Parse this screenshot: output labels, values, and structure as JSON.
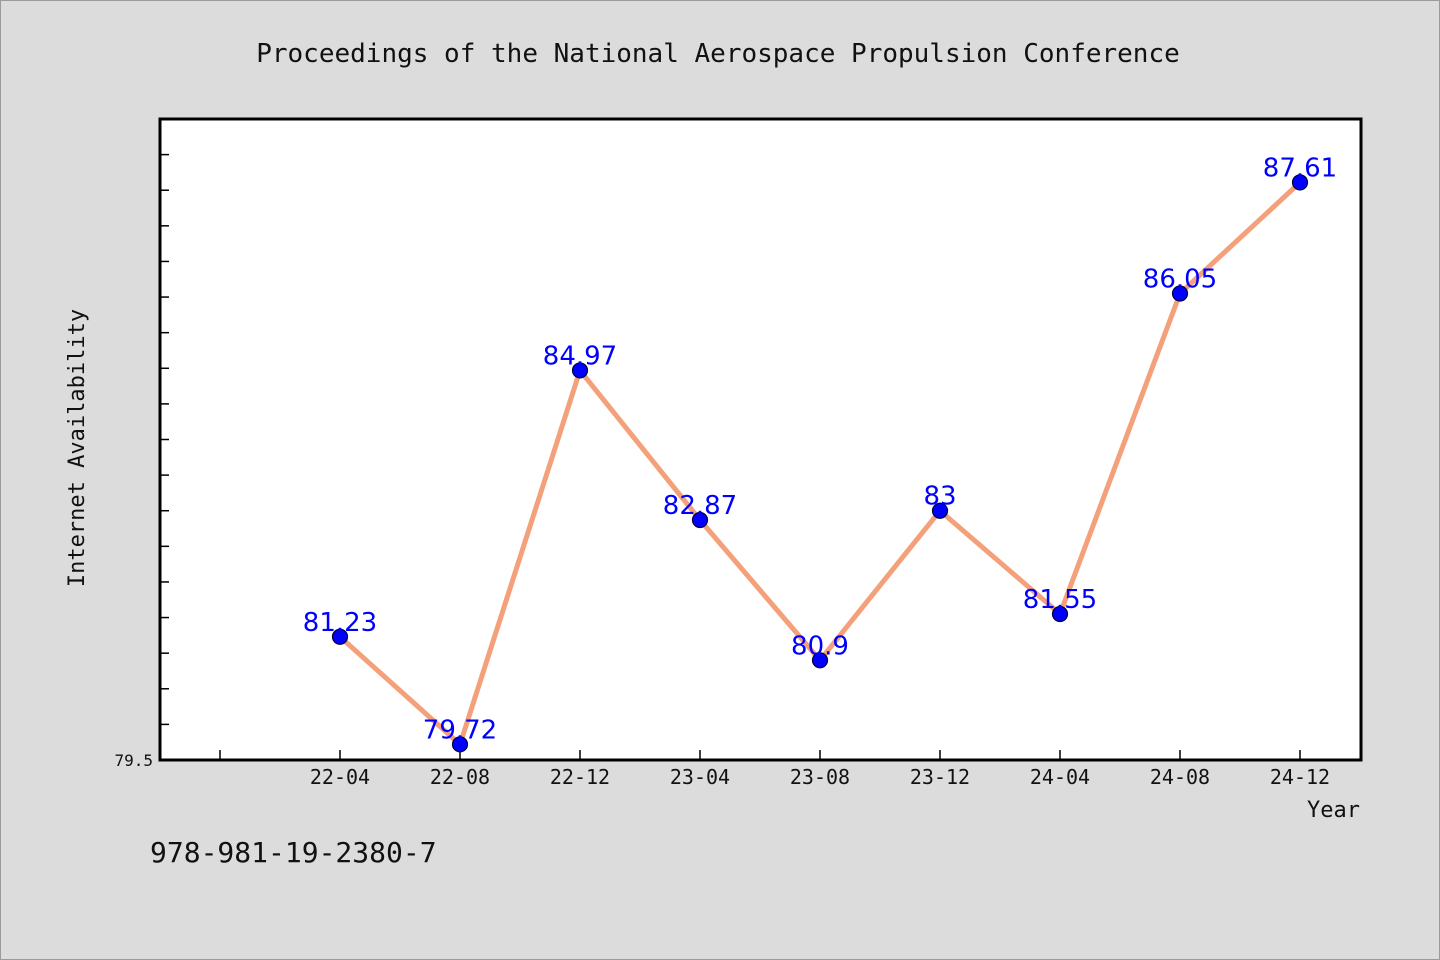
{
  "isbn": "978-981-19-2380-7",
  "chart_data": {
    "type": "line",
    "title": "Proceedings of the National Aerospace Propulsion Conference",
    "xlabel": "Year",
    "ylabel": "Internet Availability",
    "categories": [
      "22-04",
      "22-08",
      "22-12",
      "23-04",
      "23-08",
      "23-12",
      "24-04",
      "24-08",
      "24-12"
    ],
    "values": [
      81.23,
      79.72,
      84.97,
      82.87,
      80.9,
      83,
      81.55,
      86.05,
      87.61
    ],
    "value_labels": [
      "81.23",
      "79.72",
      "84.97",
      "82.87",
      "80.9",
      "83",
      "81.55",
      "86.05",
      "87.61"
    ],
    "ylim": [
      79.5,
      88.5
    ],
    "y_min_label": "79.5",
    "grid": false,
    "colors": {
      "line": "#f4a07a",
      "marker": "#0000ff",
      "labels": "#0000ff"
    }
  }
}
